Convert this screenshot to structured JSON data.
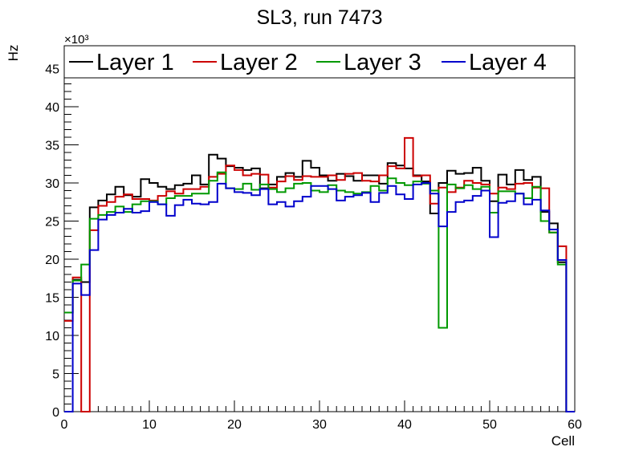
{
  "chart_data": {
    "type": "line",
    "title": "SL3, run 7473",
    "xlabel": "Cell",
    "ylabel": "Hz",
    "y_exponent": "×10³",
    "xlim": [
      0,
      60
    ],
    "ylim": [
      0,
      48
    ],
    "x_ticks": [
      0,
      10,
      20,
      30,
      40,
      50,
      60
    ],
    "y_ticks": [
      0,
      5,
      10,
      15,
      20,
      25,
      30,
      35,
      40,
      45
    ],
    "legend_position": "top",
    "series": [
      {
        "name": "Layer 1",
        "color": "#000000",
        "values": [
          13.0,
          17.3,
          17.0,
          26.8,
          27.7,
          28.5,
          29.5,
          28.4,
          28.2,
          30.5,
          30.0,
          29.5,
          29.2,
          29.7,
          29.9,
          31.0,
          29.8,
          33.7,
          33.2,
          32.2,
          32.0,
          31.7,
          31.9,
          29.3,
          29.8,
          30.8,
          31.3,
          30.8,
          32.9,
          32.0,
          31.0,
          30.3,
          31.2,
          30.9,
          30.3,
          31.0,
          31.0,
          29.9,
          32.6,
          32.3,
          31.9,
          31.0,
          30.2,
          26.0,
          30.0,
          31.6,
          31.2,
          31.3,
          32.0,
          30.3,
          27.6,
          31.1,
          29.8,
          31.7,
          30.4,
          30.8,
          26.2,
          24.7,
          19.6,
          0
        ]
      },
      {
        "name": "Layer 2",
        "color": "#cc0000",
        "values": [
          11.9,
          17.6,
          0,
          23.8,
          27.0,
          27.5,
          28.2,
          28.5,
          27.9,
          27.9,
          27.7,
          28.3,
          28.9,
          28.6,
          29.2,
          29.2,
          29.5,
          30.8,
          31.2,
          32.3,
          31.7,
          31.0,
          31.2,
          31.1,
          29.4,
          30.2,
          30.9,
          30.4,
          30.9,
          30.8,
          30.8,
          31.0,
          30.4,
          31.2,
          31.3,
          30.3,
          30.2,
          31.0,
          32.2,
          31.9,
          35.9,
          30.9,
          31.0,
          27.3,
          29.4,
          28.8,
          29.4,
          30.3,
          30.0,
          29.8,
          28.6,
          29.4,
          29.2,
          29.9,
          30.0,
          29.4,
          29.3,
          23.5,
          21.7,
          0
        ]
      },
      {
        "name": "Layer 3",
        "color": "#009900",
        "values": [
          13.0,
          17.2,
          19.3,
          25.3,
          25.8,
          26.2,
          26.9,
          26.2,
          27.2,
          27.6,
          27.6,
          27.2,
          28.0,
          28.3,
          28.3,
          28.6,
          28.6,
          30.3,
          31.4,
          29.3,
          29.2,
          29.9,
          29.1,
          29.8,
          29.2,
          28.8,
          29.3,
          29.9,
          30.0,
          29.0,
          28.8,
          29.7,
          29.0,
          28.8,
          28.6,
          28.8,
          29.6,
          29.0,
          30.6,
          30.0,
          29.7,
          30.2,
          29.9,
          29.0,
          11.0,
          29.8,
          29.3,
          29.7,
          29.2,
          29.5,
          26.1,
          28.9,
          28.9,
          28.6,
          28.0,
          29.5,
          25.0,
          23.5,
          19.3,
          0
        ]
      },
      {
        "name": "Layer 4",
        "color": "#0000cc",
        "values": [
          0,
          16.8,
          15.3,
          21.2,
          25.2,
          25.8,
          26.1,
          26.6,
          26.1,
          26.3,
          27.5,
          27.2,
          25.7,
          27.1,
          27.8,
          27.3,
          27.2,
          27.5,
          29.9,
          29.3,
          28.8,
          28.7,
          28.4,
          29.2,
          27.2,
          27.5,
          26.9,
          27.6,
          28.2,
          29.6,
          29.6,
          29.2,
          27.7,
          28.2,
          28.4,
          28.7,
          27.5,
          28.7,
          29.6,
          28.5,
          27.9,
          29.8,
          30.0,
          28.6,
          24.3,
          26.2,
          27.5,
          27.7,
          28.3,
          29.0,
          22.9,
          27.4,
          27.6,
          28.6,
          27.2,
          27.8,
          26.4,
          23.9,
          19.9,
          0
        ]
      }
    ]
  }
}
